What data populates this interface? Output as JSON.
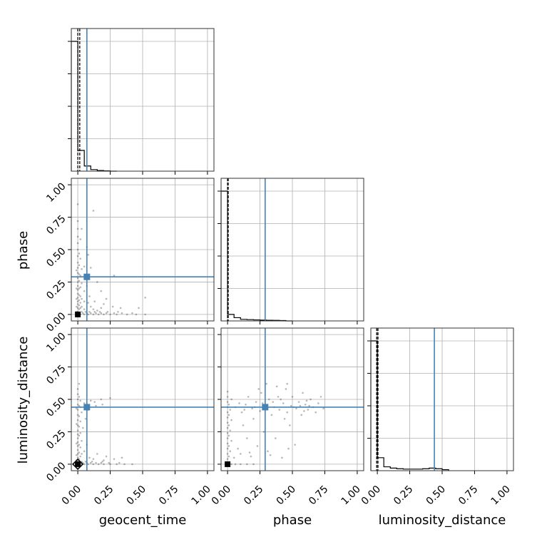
{
  "colors": {
    "truth": "#4682b4",
    "hist": "#000000",
    "points": "#000000",
    "grid": "#b0b0b0"
  },
  "chart_data": {
    "type": "scatter",
    "subtype": "corner-plot",
    "grid": true,
    "parameters": [
      "geocent_time",
      "phase",
      "luminosity_distance"
    ],
    "range": [
      -0.05,
      1.05
    ],
    "ticks": [
      0.0,
      0.25,
      0.5,
      0.75,
      1.0
    ],
    "tick_labels": [
      "0.00",
      "0.25",
      "0.50",
      "0.75",
      "1.00"
    ],
    "truths": {
      "geocent_time": 0.07,
      "phase": 0.29,
      "luminosity_distance": 0.44
    },
    "histograms": {
      "geocent_time": {
        "bin_edges": [
          -0.05,
          0.0,
          0.05,
          0.1,
          0.15,
          0.2,
          0.25,
          0.3
        ],
        "counts": [
          1.0,
          0.16,
          0.04,
          0.012,
          0.005,
          0.002,
          0.0
        ],
        "quantile_lines": [
          0.0,
          0.015
        ]
      },
      "phase": {
        "bin_edges": [
          -0.05,
          0.0,
          0.05,
          0.1,
          0.15,
          0.2,
          0.25,
          0.3,
          0.35,
          0.4,
          0.45,
          0.5
        ],
        "counts": [
          1.0,
          0.05,
          0.025,
          0.012,
          0.01,
          0.008,
          0.006,
          0.005,
          0.004,
          0.003,
          0.0
        ],
        "quantile_lines": [
          0.0,
          0.005
        ]
      },
      "luminosity_distance": {
        "bin_edges": [
          -0.05,
          0.0,
          0.05,
          0.1,
          0.15,
          0.2,
          0.25,
          0.3,
          0.35,
          0.4,
          0.45,
          0.5,
          0.55
        ],
        "counts": [
          1.0,
          0.1,
          0.03,
          0.02,
          0.015,
          0.012,
          0.012,
          0.012,
          0.015,
          0.02,
          0.015,
          0.008
        ],
        "quantile_lines": [
          -0.005,
          0.005
        ]
      }
    },
    "scatter": [
      {
        "x_param": "geocent_time",
        "y_param": "phase",
        "points": [
          [
            0.0,
            0.0
          ],
          [
            0.02,
            0.0
          ],
          [
            0.05,
            0.0
          ],
          [
            0.08,
            0.0
          ],
          [
            0.12,
            0.0
          ],
          [
            0.16,
            0.0
          ],
          [
            0.2,
            0.0
          ],
          [
            0.25,
            0.0
          ],
          [
            0.3,
            0.0
          ],
          [
            0.38,
            0.0
          ],
          [
            0.45,
            0.0
          ],
          [
            0.52,
            0.0
          ],
          [
            0.01,
            0.01
          ],
          [
            0.04,
            0.01
          ],
          [
            0.07,
            0.01
          ],
          [
            0.1,
            0.01
          ],
          [
            0.14,
            0.01
          ],
          [
            0.18,
            0.01
          ],
          [
            0.22,
            0.01
          ],
          [
            0.28,
            0.01
          ],
          [
            0.34,
            0.01
          ],
          [
            0.42,
            0.01
          ],
          [
            0.0,
            0.02
          ],
          [
            0.03,
            0.02
          ],
          [
            0.06,
            0.02
          ],
          [
            0.09,
            0.02
          ],
          [
            0.13,
            0.02
          ],
          [
            0.17,
            0.02
          ],
          [
            0.23,
            0.02
          ],
          [
            0.31,
            0.02
          ],
          [
            0.0,
            0.05
          ],
          [
            0.0,
            0.08
          ],
          [
            0.0,
            0.1
          ],
          [
            0.0,
            0.13
          ],
          [
            0.0,
            0.16
          ],
          [
            0.0,
            0.19
          ],
          [
            0.0,
            0.22
          ],
          [
            0.0,
            0.25
          ],
          [
            0.0,
            0.28
          ],
          [
            0.0,
            0.32
          ],
          [
            0.0,
            0.36
          ],
          [
            0.0,
            0.4
          ],
          [
            0.0,
            0.45
          ],
          [
            0.0,
            0.5
          ],
          [
            0.0,
            0.55
          ],
          [
            0.0,
            0.6
          ],
          [
            0.0,
            0.66
          ],
          [
            0.01,
            0.04
          ],
          [
            0.01,
            0.07
          ],
          [
            0.01,
            0.11
          ],
          [
            0.01,
            0.15
          ],
          [
            0.01,
            0.2
          ],
          [
            0.01,
            0.26
          ],
          [
            0.01,
            0.31
          ],
          [
            0.01,
            0.38
          ],
          [
            0.01,
            0.47
          ],
          [
            0.02,
            0.05
          ],
          [
            0.02,
            0.09
          ],
          [
            0.02,
            0.14
          ],
          [
            0.02,
            0.21
          ],
          [
            0.02,
            0.3
          ],
          [
            0.02,
            0.43
          ],
          [
            0.03,
            0.06
          ],
          [
            0.03,
            0.12
          ],
          [
            0.03,
            0.24
          ],
          [
            0.03,
            0.35
          ],
          [
            0.05,
            0.04
          ],
          [
            0.05,
            0.1
          ],
          [
            0.05,
            0.18
          ],
          [
            0.06,
            0.3
          ],
          [
            0.07,
            0.22
          ],
          [
            0.08,
            0.09
          ],
          [
            0.09,
            0.14
          ],
          [
            0.1,
            0.06
          ],
          [
            0.12,
            0.04
          ],
          [
            0.13,
            0.1
          ],
          [
            0.15,
            0.03
          ],
          [
            0.18,
            0.05
          ],
          [
            0.2,
            0.08
          ],
          [
            0.22,
            0.12
          ],
          [
            0.27,
            0.06
          ],
          [
            0.33,
            0.05
          ],
          [
            -0.01,
            0.0
          ],
          [
            -0.01,
            0.02
          ],
          [
            -0.01,
            0.06
          ],
          [
            -0.01,
            0.12
          ],
          [
            -0.01,
            0.2
          ],
          [
            -0.01,
            0.34
          ],
          [
            0.0,
            0.85
          ],
          [
            0.0,
            0.72
          ],
          [
            0.02,
            0.58
          ],
          [
            0.12,
            0.8
          ],
          [
            0.07,
            0.52
          ],
          [
            0.03,
            0.66
          ],
          [
            0.47,
            0.05
          ],
          [
            0.52,
            0.13
          ],
          [
            0.28,
            0.3
          ],
          [
            0.05,
            0.37
          ],
          [
            0.08,
            0.46
          ],
          [
            0.15,
            0.25
          ],
          [
            0.18,
            0.18
          ],
          [
            0.1,
            0.36
          ]
        ]
      },
      {
        "x_param": "geocent_time",
        "y_param": "luminosity_distance",
        "points": [
          [
            0.0,
            0.0
          ],
          [
            0.02,
            0.0
          ],
          [
            0.05,
            0.0
          ],
          [
            0.08,
            0.0
          ],
          [
            0.12,
            0.0
          ],
          [
            0.16,
            0.0
          ],
          [
            0.2,
            0.0
          ],
          [
            0.25,
            0.0
          ],
          [
            0.3,
            0.0
          ],
          [
            0.36,
            0.0
          ],
          [
            0.42,
            0.0
          ],
          [
            0.01,
            0.01
          ],
          [
            0.04,
            0.01
          ],
          [
            0.07,
            0.01
          ],
          [
            0.1,
            0.01
          ],
          [
            0.14,
            0.01
          ],
          [
            0.18,
            0.01
          ],
          [
            0.24,
            0.01
          ],
          [
            0.32,
            0.01
          ],
          [
            0.0,
            0.02
          ],
          [
            0.03,
            0.02
          ],
          [
            0.06,
            0.02
          ],
          [
            0.11,
            0.02
          ],
          [
            0.19,
            0.02
          ],
          [
            0.0,
            0.05
          ],
          [
            0.0,
            0.08
          ],
          [
            0.0,
            0.11
          ],
          [
            0.0,
            0.14
          ],
          [
            0.0,
            0.17
          ],
          [
            0.0,
            0.2
          ],
          [
            0.0,
            0.23
          ],
          [
            0.0,
            0.26
          ],
          [
            0.0,
            0.3
          ],
          [
            0.0,
            0.34
          ],
          [
            0.0,
            0.38
          ],
          [
            0.0,
            0.42
          ],
          [
            0.0,
            0.46
          ],
          [
            0.0,
            0.5
          ],
          [
            0.0,
            0.54
          ],
          [
            0.01,
            0.04
          ],
          [
            0.01,
            0.09
          ],
          [
            0.01,
            0.15
          ],
          [
            0.01,
            0.22
          ],
          [
            0.01,
            0.29
          ],
          [
            0.01,
            0.37
          ],
          [
            0.01,
            0.45
          ],
          [
            0.01,
            0.52
          ],
          [
            0.02,
            0.06
          ],
          [
            0.02,
            0.13
          ],
          [
            0.02,
            0.24
          ],
          [
            0.02,
            0.33
          ],
          [
            0.02,
            0.44
          ],
          [
            0.02,
            0.49
          ],
          [
            0.03,
            0.08
          ],
          [
            0.03,
            0.18
          ],
          [
            0.03,
            0.4
          ],
          [
            0.04,
            0.28
          ],
          [
            0.05,
            0.1
          ],
          [
            0.05,
            0.47
          ],
          [
            0.06,
            0.35
          ],
          [
            0.07,
            0.15
          ],
          [
            0.08,
            0.42
          ],
          [
            0.09,
            0.05
          ],
          [
            0.1,
            0.49
          ],
          [
            0.12,
            0.04
          ],
          [
            0.14,
            0.45
          ],
          [
            0.15,
            0.08
          ],
          [
            0.18,
            0.5
          ],
          [
            0.2,
            0.03
          ],
          [
            0.22,
            0.06
          ],
          [
            0.28,
            0.04
          ],
          [
            -0.01,
            0.0
          ],
          [
            -0.01,
            0.03
          ],
          [
            -0.01,
            0.07
          ],
          [
            -0.01,
            0.16
          ],
          [
            -0.01,
            0.31
          ],
          [
            -0.01,
            0.43
          ],
          [
            0.0,
            0.58
          ],
          [
            0.01,
            0.62
          ],
          [
            0.13,
            0.48
          ],
          [
            0.19,
            0.46
          ],
          [
            0.25,
            0.51
          ],
          [
            0.34,
            0.05
          ]
        ]
      },
      {
        "x_param": "phase",
        "y_param": "luminosity_distance",
        "points": [
          [
            0.0,
            0.0
          ],
          [
            0.03,
            0.0
          ],
          [
            0.06,
            0.0
          ],
          [
            0.1,
            0.0
          ],
          [
            0.15,
            0.0
          ],
          [
            0.2,
            0.0
          ],
          [
            0.0,
            0.04
          ],
          [
            0.0,
            0.08
          ],
          [
            0.0,
            0.12
          ],
          [
            0.0,
            0.16
          ],
          [
            0.0,
            0.2
          ],
          [
            0.0,
            0.24
          ],
          [
            0.0,
            0.28
          ],
          [
            0.0,
            0.32
          ],
          [
            0.0,
            0.36
          ],
          [
            0.0,
            0.4
          ],
          [
            0.0,
            0.44
          ],
          [
            0.0,
            0.48
          ],
          [
            0.0,
            0.52
          ],
          [
            0.0,
            0.56
          ],
          [
            0.01,
            0.06
          ],
          [
            0.01,
            0.14
          ],
          [
            0.01,
            0.22
          ],
          [
            0.01,
            0.3
          ],
          [
            0.01,
            0.38
          ],
          [
            0.01,
            0.46
          ],
          [
            0.02,
            0.1
          ],
          [
            0.02,
            0.26
          ],
          [
            0.02,
            0.42
          ],
          [
            0.03,
            0.18
          ],
          [
            0.03,
            0.34
          ],
          [
            0.03,
            0.5
          ],
          [
            0.05,
            0.05
          ],
          [
            0.06,
            0.44
          ],
          [
            0.08,
            0.12
          ],
          [
            0.09,
            0.47
          ],
          [
            0.1,
            0.08
          ],
          [
            0.11,
            0.4
          ],
          [
            0.12,
            0.3
          ],
          [
            0.14,
            0.46
          ],
          [
            0.15,
            0.2
          ],
          [
            0.16,
            0.52
          ],
          [
            0.18,
            0.06
          ],
          [
            0.19,
            0.43
          ],
          [
            0.2,
            0.35
          ],
          [
            0.22,
            0.48
          ],
          [
            0.23,
            0.14
          ],
          [
            0.25,
            0.41
          ],
          [
            0.26,
            0.55
          ],
          [
            0.28,
            0.25
          ],
          [
            0.29,
            0.45
          ],
          [
            0.31,
            0.1
          ],
          [
            0.32,
            0.5
          ],
          [
            0.34,
            0.38
          ],
          [
            0.36,
            0.44
          ],
          [
            0.37,
            0.2
          ],
          [
            0.39,
            0.52
          ],
          [
            0.4,
            0.42
          ],
          [
            0.42,
            0.05
          ],
          [
            0.43,
            0.47
          ],
          [
            0.45,
            0.58
          ],
          [
            0.46,
            0.4
          ],
          [
            0.48,
            0.3
          ],
          [
            0.49,
            0.45
          ],
          [
            0.5,
            0.52
          ],
          [
            0.52,
            0.15
          ],
          [
            0.53,
            0.43
          ],
          [
            0.55,
            0.48
          ],
          [
            0.57,
            0.38
          ],
          [
            0.58,
            0.55
          ],
          [
            0.6,
            0.46
          ],
          [
            0.62,
            0.42
          ],
          [
            0.64,
            0.5
          ],
          [
            0.66,
            0.44
          ],
          [
            0.68,
            0.4
          ],
          [
            0.7,
            0.47
          ],
          [
            0.72,
            0.52
          ],
          [
            0.74,
            0.43
          ],
          [
            0.46,
            0.62
          ],
          [
            0.38,
            0.6
          ],
          [
            0.24,
            0.58
          ],
          [
            0.3,
            0.62
          ],
          [
            0.41,
            0.5
          ],
          [
            0.44,
            0.35
          ],
          [
            0.35,
            0.48
          ],
          [
            0.27,
            0.47
          ],
          [
            0.21,
            0.44
          ],
          [
            0.13,
            0.42
          ],
          [
            0.17,
            0.09
          ],
          [
            0.33,
            0.07
          ],
          [
            0.47,
            0.12
          ],
          [
            0.51,
            0.44
          ],
          [
            0.56,
            0.45
          ],
          [
            0.59,
            0.41
          ],
          [
            0.61,
            0.49
          ],
          [
            0.63,
            0.45
          ]
        ]
      }
    ],
    "xlabels": {
      "geocent_time": "geocent_time",
      "phase": "phase",
      "luminosity_distance": "luminosity_distance"
    },
    "ylabels": {
      "phase": "phase",
      "luminosity_distance": "luminosity_distance"
    }
  }
}
